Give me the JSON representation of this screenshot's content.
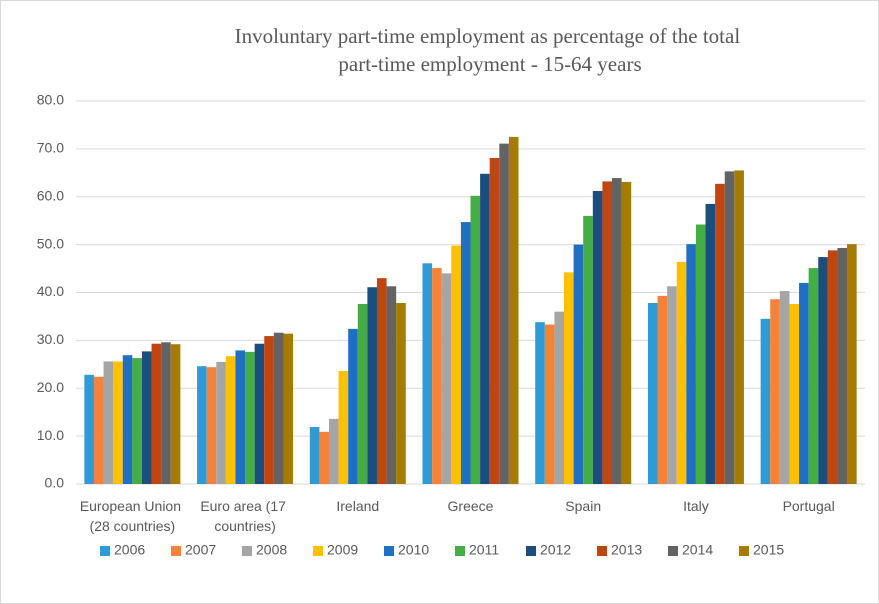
{
  "chart_data": {
    "type": "bar",
    "title": "Involuntary part-time employment as percentage of the total part-time employment - 15-64 years",
    "categories": [
      "European Union (28 countries)",
      "Euro area (17 countries)",
      "Ireland",
      "Greece",
      "Spain",
      "Italy",
      "Portugal"
    ],
    "series": [
      {
        "name": "2006",
        "color": "#2e9bd6",
        "values": [
          22.8,
          24.6,
          11.9,
          46.1,
          33.8,
          37.8,
          34.5
        ]
      },
      {
        "name": "2007",
        "color": "#f4823b",
        "values": [
          22.4,
          24.4,
          10.9,
          45.1,
          33.3,
          39.3,
          38.6
        ]
      },
      {
        "name": "2008",
        "color": "#a5a5a5",
        "values": [
          25.6,
          25.5,
          13.6,
          44.0,
          36.0,
          41.3,
          40.3
        ]
      },
      {
        "name": "2009",
        "color": "#ffc000",
        "values": [
          25.6,
          26.7,
          23.6,
          49.8,
          44.2,
          46.4,
          37.6
        ]
      },
      {
        "name": "2010",
        "color": "#1f6fc5",
        "values": [
          26.9,
          27.9,
          32.4,
          54.7,
          50.0,
          50.1,
          42.0
        ]
      },
      {
        "name": "2011",
        "color": "#45ad45",
        "values": [
          26.3,
          27.6,
          37.6,
          60.2,
          56.0,
          54.2,
          45.1
        ]
      },
      {
        "name": "2012",
        "color": "#1b4e7c",
        "values": [
          27.7,
          29.3,
          41.1,
          64.8,
          61.2,
          58.5,
          47.4
        ]
      },
      {
        "name": "2013",
        "color": "#c04511",
        "values": [
          29.3,
          30.9,
          43.0,
          68.1,
          63.2,
          62.7,
          48.8
        ]
      },
      {
        "name": "2014",
        "color": "#636363",
        "values": [
          29.6,
          31.6,
          41.3,
          71.1,
          63.9,
          65.3,
          49.3
        ]
      },
      {
        "name": "2015",
        "color": "#a57c00",
        "values": [
          29.2,
          31.4,
          37.8,
          72.5,
          63.1,
          65.5,
          50.1
        ]
      }
    ],
    "ylim": [
      0,
      80
    ],
    "yticks": [
      {
        "value": 0,
        "label": "0.0"
      },
      {
        "value": 10,
        "label": "10.0"
      },
      {
        "value": 20,
        "label": "20.0"
      },
      {
        "value": 30,
        "label": "30.0"
      },
      {
        "value": 40,
        "label": "40.0"
      },
      {
        "value": 50,
        "label": "50.0"
      },
      {
        "value": 60,
        "label": "60.0"
      },
      {
        "value": 70,
        "label": "70.0"
      },
      {
        "value": 80,
        "label": "80.0"
      }
    ],
    "grid": true,
    "legend": "bottom"
  }
}
